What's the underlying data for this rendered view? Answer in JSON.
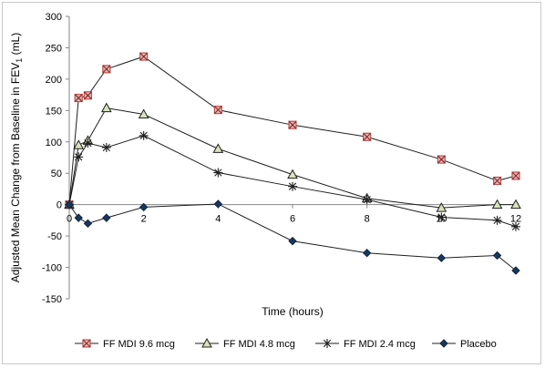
{
  "chart_data": {
    "type": "line",
    "title": "",
    "xlabel": "Time (hours)",
    "ylabel_parts": [
      "Adjusted Mean Change from Baseline in FEV",
      "1",
      " (mL)"
    ],
    "xlim": [
      0,
      12
    ],
    "ylim": [
      -150,
      300
    ],
    "x_ticks": [
      0,
      2,
      4,
      6,
      8,
      10,
      12
    ],
    "y_ticks": [
      -150,
      -100,
      -50,
      0,
      50,
      100,
      150,
      200,
      250,
      300
    ],
    "x_tick_labels": [
      "0",
      "2",
      "4",
      "6",
      "8",
      "10",
      "12"
    ],
    "y_tick_labels": [
      "-150",
      "-100",
      "-50",
      "0",
      "50",
      "100",
      "150",
      "200",
      "250",
      "300"
    ],
    "grid": false,
    "legend_position": "bottom",
    "series": [
      {
        "name": "FF MDI 9.6 mcg",
        "marker": "square-x",
        "color": "#c0504d",
        "fill": "#e6b9b8",
        "x": [
          0,
          0.25,
          0.5,
          1,
          2,
          4,
          6,
          8,
          10,
          11.5,
          12
        ],
        "y": [
          0,
          170,
          174,
          216,
          236,
          151,
          127,
          108,
          72,
          38,
          46
        ]
      },
      {
        "name": "FF MDI 4.8 mcg",
        "marker": "triangle",
        "color": "#1f1f1f",
        "fill": "#d7e4bd",
        "x": [
          0,
          0.25,
          0.5,
          1,
          2,
          4,
          6,
          8,
          10,
          11.5,
          12
        ],
        "y": [
          0,
          95,
          102,
          154,
          144,
          89,
          48,
          10,
          -5,
          0,
          0
        ]
      },
      {
        "name": "FF MDI 2.4 mcg",
        "marker": "asterisk",
        "color": "#1f1f1f",
        "fill": "none",
        "x": [
          0,
          0.25,
          0.5,
          1,
          2,
          4,
          6,
          8,
          10,
          11.5,
          12
        ],
        "y": [
          0,
          76,
          98,
          91,
          110,
          51,
          29,
          8,
          -20,
          -25,
          -35
        ]
      },
      {
        "name": "Placebo",
        "marker": "diamond",
        "color": "#1f1f1f",
        "fill": "#17375e",
        "x": [
          0,
          0.25,
          0.5,
          1,
          2,
          4,
          6,
          8,
          10,
          11.5,
          12
        ],
        "y": [
          0,
          -21,
          -30,
          -21,
          -4,
          1,
          -58,
          -77,
          -85,
          -81,
          -105
        ]
      }
    ]
  }
}
